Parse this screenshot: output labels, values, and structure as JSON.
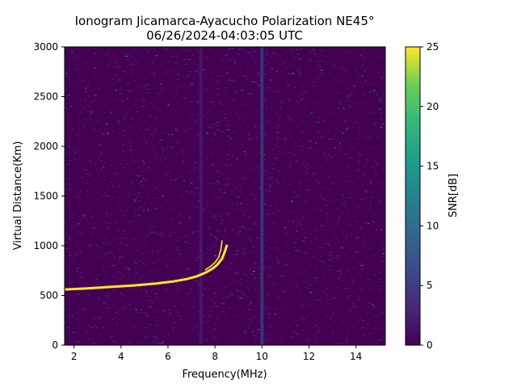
{
  "chart_data": {
    "type": "heatmap",
    "title": "Ionogram Jicamarca-Ayacucho Polarization NE45°",
    "subtitle": "06/26/2024-04:03:05 UTC",
    "xlabel": "Frequency(MHz)",
    "ylabel": "Virtual Distance(Km)",
    "xlim": [
      1.6,
      15.25
    ],
    "ylim": [
      0,
      3000
    ],
    "x_ticks": [
      2,
      4,
      6,
      8,
      10,
      12,
      14
    ],
    "y_ticks": [
      0,
      500,
      1000,
      1500,
      2000,
      2500,
      3000
    ],
    "colorbar": {
      "label": "SNR[dB]",
      "range": [
        0,
        25
      ],
      "ticks": [
        0,
        5,
        10,
        15,
        20,
        25
      ],
      "colormap": "viridis"
    },
    "traces": [
      {
        "name": "o-trace",
        "x": [
          1.6,
          2.5,
          3.5,
          4.5,
          5.5,
          6.2,
          6.8,
          7.2,
          7.6,
          7.9,
          8.1,
          8.3,
          8.4,
          8.5
        ],
        "y": [
          560,
          570,
          585,
          600,
          620,
          640,
          665,
          690,
          730,
          770,
          810,
          870,
          930,
          1000
        ]
      },
      {
        "name": "x-trace",
        "x": [
          7.6,
          7.8,
          8.0,
          8.15,
          8.25,
          8.3
        ],
        "y": [
          760,
          790,
          830,
          880,
          960,
          1050
        ]
      }
    ],
    "features": [
      {
        "type": "vertical_band",
        "x": 7.4,
        "snr": 3
      },
      {
        "type": "vertical_band",
        "x": 10.0,
        "snr": 8
      }
    ]
  }
}
